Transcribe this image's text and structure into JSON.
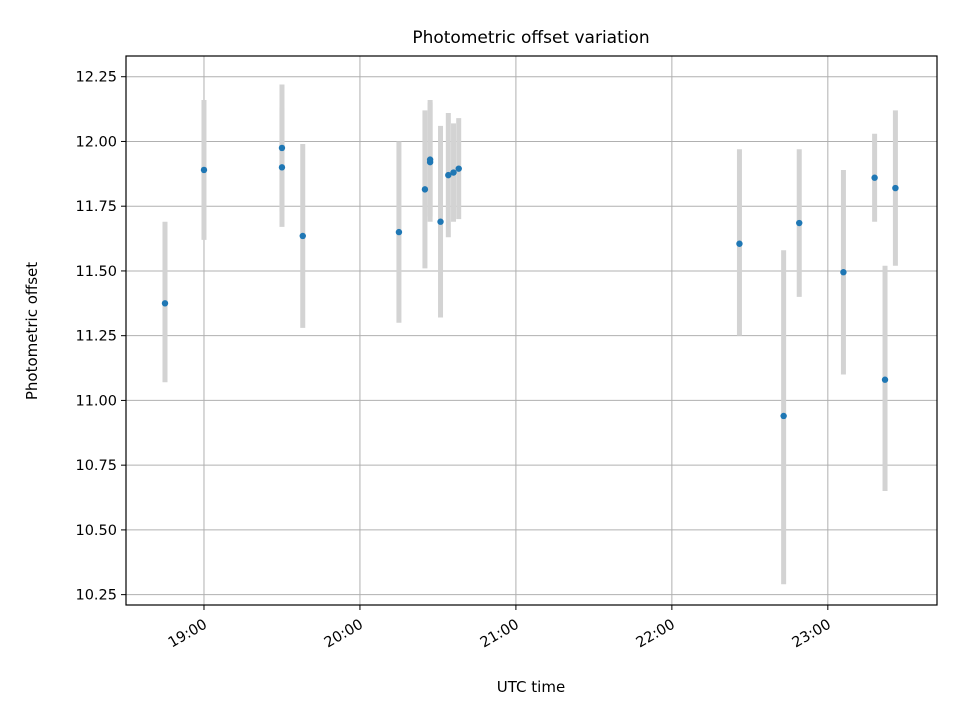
{
  "chart_data": {
    "type": "scatter",
    "title": "Photometric offset variation",
    "xlabel": "UTC time",
    "ylabel": "Photometric offset",
    "x_unit": "time (HH:MM)",
    "xlim": [
      "18:30",
      "23:42"
    ],
    "ylim": [
      10.21,
      12.33
    ],
    "x_ticks": [
      "19:00",
      "20:00",
      "21:00",
      "22:00",
      "23:00"
    ],
    "y_ticks": [
      "10.25",
      "10.50",
      "10.75",
      "11.00",
      "11.25",
      "11.50",
      "11.75",
      "12.00",
      "12.25"
    ],
    "grid": true,
    "marker_color": "#1f77b4",
    "errorbar_color": "#d3d3d3",
    "points": [
      {
        "x": "18:45",
        "y": 11.375,
        "yerr_low": 11.07,
        "yerr_high": 11.69
      },
      {
        "x": "19:00",
        "y": 11.89,
        "yerr_low": 11.62,
        "yerr_high": 12.16
      },
      {
        "x": "19:30",
        "y": 11.975,
        "yerr_low": 11.73,
        "yerr_high": 12.22
      },
      {
        "x": "19:30",
        "y": 11.9,
        "yerr_low": 11.67,
        "yerr_high": 12.13
      },
      {
        "x": "19:38",
        "y": 11.635,
        "yerr_low": 11.28,
        "yerr_high": 11.99
      },
      {
        "x": "20:15",
        "y": 11.65,
        "yerr_low": 11.3,
        "yerr_high": 12.0
      },
      {
        "x": "20:25",
        "y": 11.815,
        "yerr_low": 11.51,
        "yerr_high": 12.12
      },
      {
        "x": "20:27",
        "y": 11.92,
        "yerr_low": 11.69,
        "yerr_high": 12.15
      },
      {
        "x": "20:27",
        "y": 11.93,
        "yerr_low": 11.71,
        "yerr_high": 12.16
      },
      {
        "x": "20:31",
        "y": 11.69,
        "yerr_low": 11.32,
        "yerr_high": 12.06
      },
      {
        "x": "20:34",
        "y": 11.87,
        "yerr_low": 11.63,
        "yerr_high": 12.11
      },
      {
        "x": "20:36",
        "y": 11.88,
        "yerr_low": 11.69,
        "yerr_high": 12.07
      },
      {
        "x": "20:38",
        "y": 11.895,
        "yerr_low": 11.7,
        "yerr_high": 12.09
      },
      {
        "x": "22:26",
        "y": 11.605,
        "yerr_low": 11.25,
        "yerr_high": 11.97
      },
      {
        "x": "22:43",
        "y": 10.94,
        "yerr_low": 10.29,
        "yerr_high": 11.58
      },
      {
        "x": "22:49",
        "y": 11.685,
        "yerr_low": 11.4,
        "yerr_high": 11.97
      },
      {
        "x": "23:06",
        "y": 11.495,
        "yerr_low": 11.1,
        "yerr_high": 11.89
      },
      {
        "x": "23:18",
        "y": 11.86,
        "yerr_low": 11.69,
        "yerr_high": 12.03
      },
      {
        "x": "23:22",
        "y": 11.08,
        "yerr_low": 10.65,
        "yerr_high": 11.52
      },
      {
        "x": "23:26",
        "y": 11.82,
        "yerr_low": 11.52,
        "yerr_high": 12.12
      }
    ]
  }
}
